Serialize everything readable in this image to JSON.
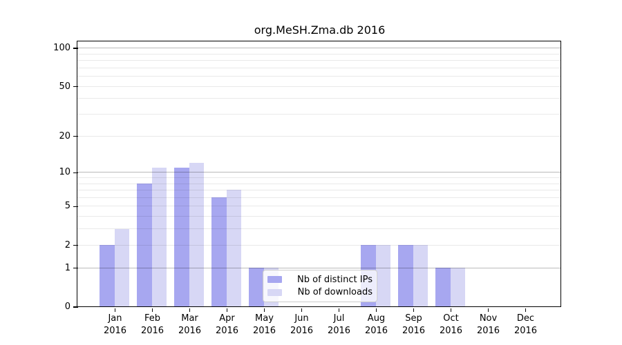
{
  "chart_data": {
    "type": "bar",
    "title": "org.MeSH.Zma.db 2016",
    "categories": [
      "Jan",
      "Feb",
      "Mar",
      "Apr",
      "May",
      "Jun",
      "Jul",
      "Aug",
      "Sep",
      "Oct",
      "Nov",
      "Dec"
    ],
    "year": "2016",
    "series": [
      {
        "name": "Nb of distinct IPs",
        "color": "#a7a7f0",
        "values": [
          2,
          8,
          11,
          6,
          1,
          0,
          0,
          2,
          2,
          1,
          0,
          0
        ]
      },
      {
        "name": "Nb of downloads",
        "color": "#d7d7f5",
        "values": [
          3,
          11,
          12,
          7,
          1,
          0,
          0,
          2,
          2,
          1,
          0,
          0
        ]
      }
    ],
    "yscale": "log1p",
    "ylim": [
      0,
      112
    ],
    "yticks": [
      0,
      1,
      2,
      5,
      10,
      20,
      50,
      100
    ],
    "grid": {
      "major": [
        1,
        10,
        100
      ],
      "minor": [
        2,
        3,
        4,
        5,
        6,
        7,
        8,
        9,
        20,
        30,
        40,
        50,
        60,
        70,
        80,
        90
      ]
    },
    "legend": {
      "position": "center"
    }
  }
}
